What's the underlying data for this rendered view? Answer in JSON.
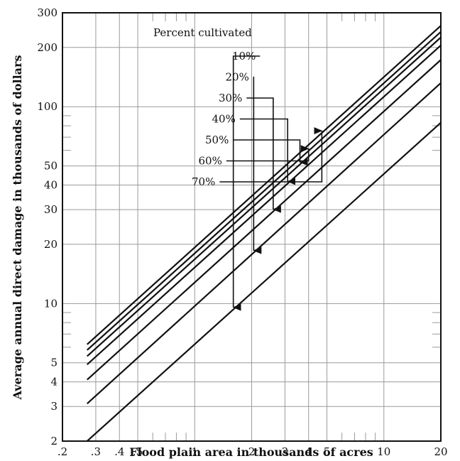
{
  "chart_data": {
    "type": "line",
    "xlabel": "Flood plain area in thousands of acres",
    "ylabel": "Average annual direct damage in thousands of dollars",
    "xscale": "log",
    "yscale": "log",
    "xlim": [
      0.2,
      20
    ],
    "ylim": [
      2,
      300
    ],
    "x_ticks": [
      {
        "value": 0.2,
        "label": ".2"
      },
      {
        "value": 0.3,
        "label": ".3"
      },
      {
        "value": 0.4,
        "label": ".4"
      },
      {
        "value": 0.5,
        "label": ".5"
      },
      {
        "value": 1,
        "label": "1"
      },
      {
        "value": 2,
        "label": "2"
      },
      {
        "value": 3,
        "label": "3"
      },
      {
        "value": 4,
        "label": "4"
      },
      {
        "value": 5,
        "label": "5"
      },
      {
        "value": 10,
        "label": "10"
      },
      {
        "value": 20,
        "label": "20"
      }
    ],
    "y_ticks": [
      {
        "value": 2,
        "label": "2"
      },
      {
        "value": 3,
        "label": "3"
      },
      {
        "value": 4,
        "label": "4"
      },
      {
        "value": 5,
        "label": "5"
      },
      {
        "value": 10,
        "label": "10"
      },
      {
        "value": 20,
        "label": "20"
      },
      {
        "value": 30,
        "label": "30"
      },
      {
        "value": 40,
        "label": "40"
      },
      {
        "value": 50,
        "label": "50"
      },
      {
        "value": 100,
        "label": "100"
      },
      {
        "value": 200,
        "label": "200"
      },
      {
        "value": 300,
        "label": "300"
      }
    ],
    "x_gridlines": [
      0.3,
      0.4,
      0.5,
      1,
      2,
      3,
      4,
      5,
      10
    ],
    "y_gridlines": [
      3,
      4,
      5,
      10,
      20,
      30,
      40,
      50,
      100,
      200
    ],
    "legend_title": "Percent cultivated",
    "series": [
      {
        "name": "10%",
        "x": [
          0.27,
          20
        ],
        "y": [
          2.0,
          83
        ],
        "arrow_x": 1.6
      },
      {
        "name": "20%",
        "x": [
          0.27,
          20
        ],
        "y": [
          3.1,
          132
        ],
        "arrow_x": 2.05
      },
      {
        "name": "30%",
        "x": [
          0.27,
          20
        ],
        "y": [
          4.1,
          173
        ],
        "arrow_x": 2.6
      },
      {
        "name": "40%",
        "x": [
          0.27,
          20
        ],
        "y": [
          4.9,
          205
        ],
        "arrow_x": 3.1
      },
      {
        "name": "50%",
        "x": [
          0.27,
          20
        ],
        "y": [
          5.4,
          225
        ],
        "arrow_x": 3.6
      },
      {
        "name": "60%",
        "x": [
          0.27,
          20
        ],
        "y": [
          5.8,
          240
        ],
        "arrow_x": 4.0
      },
      {
        "name": "70%",
        "x": [
          0.27,
          20
        ],
        "y": [
          6.2,
          258
        ],
        "arrow_x": 4.7
      }
    ]
  }
}
